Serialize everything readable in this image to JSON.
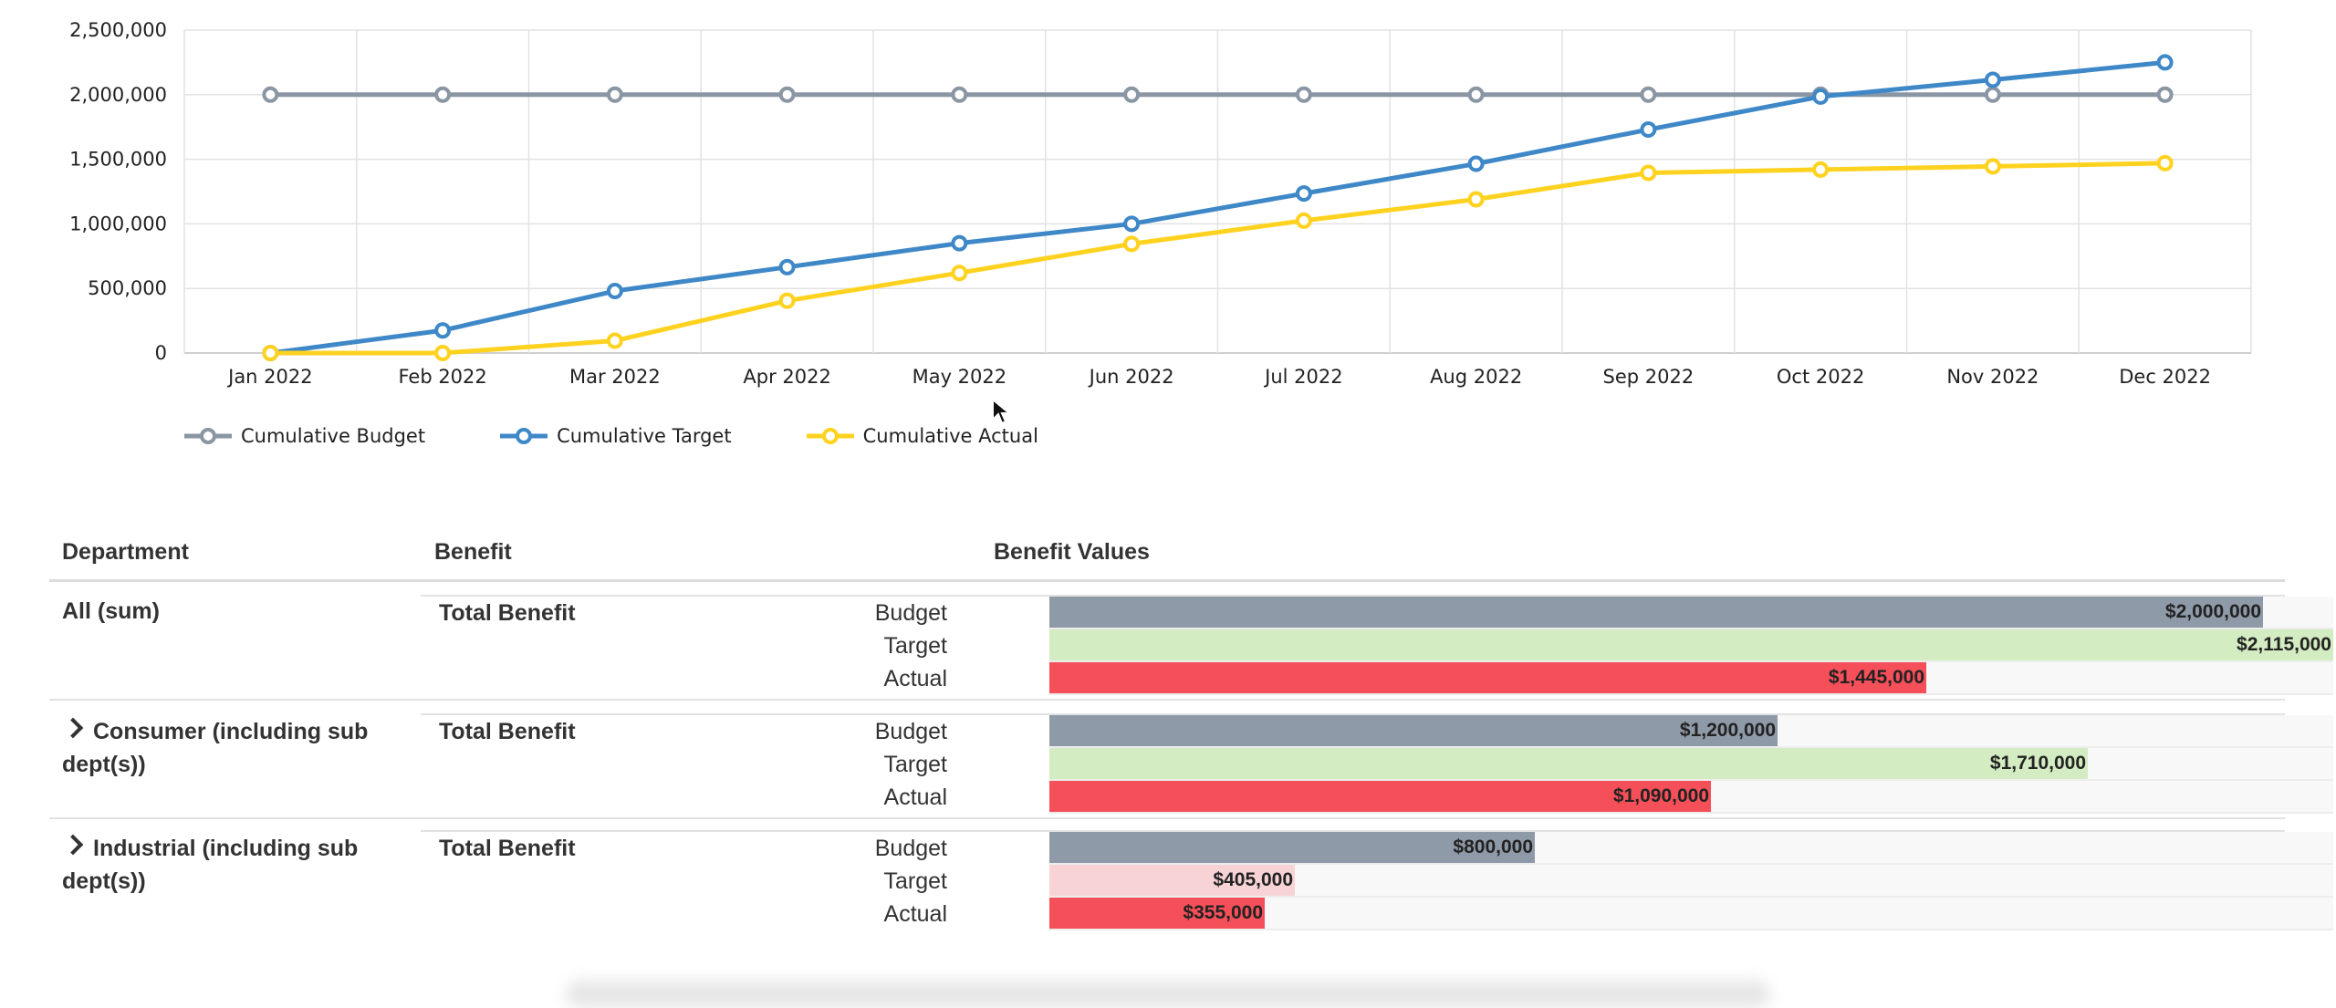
{
  "chart_data": {
    "type": "line",
    "categories": [
      "Jan 2022",
      "Feb 2022",
      "Mar 2022",
      "Apr 2022",
      "May 2022",
      "Jun 2022",
      "Jul 2022",
      "Aug 2022",
      "Sep 2022",
      "Oct 2022",
      "Nov 2022",
      "Dec 2022"
    ],
    "y_ticks": [
      "2,500,000",
      "2,000,000",
      "1,500,000",
      "1,000,000",
      "500,000",
      "0"
    ],
    "ylim": [
      0,
      2500000
    ],
    "grid": true,
    "legend_position": "bottom-left",
    "series": [
      {
        "name": "Cumulative Budget",
        "color": "#8a96a3",
        "values": [
          2000000,
          2000000,
          2000000,
          2000000,
          2000000,
          2000000,
          2000000,
          2000000,
          2000000,
          2000000,
          2000000,
          2000000
        ]
      },
      {
        "name": "Cumulative Target",
        "color": "#3f88c8",
        "values": [
          0,
          175000,
          480000,
          665000,
          850000,
          1000000,
          1235000,
          1465000,
          1730000,
          1985000,
          2115000,
          2250000
        ]
      },
      {
        "name": "Cumulative Actual",
        "color": "#ffd21f",
        "values": [
          0,
          0,
          95000,
          405000,
          620000,
          845000,
          1025000,
          1190000,
          1395000,
          1420000,
          1445000,
          1470000
        ]
      }
    ]
  },
  "table": {
    "headers": {
      "department": "Department",
      "benefit": "Benefit",
      "values": "Benefit Values"
    },
    "max_value": 2115000,
    "rows": [
      {
        "department": "All (sum)",
        "expandable": false,
        "benefit": "Total Benefit",
        "bars": [
          {
            "label": "Budget",
            "value": 2000000,
            "text": "$2,000,000",
            "color": "#8f9aa8"
          },
          {
            "label": "Target",
            "value": 2115000,
            "text": "$2,115,000",
            "color": "#d3ecc1"
          },
          {
            "label": "Actual",
            "value": 1445000,
            "text": "$1,445,000",
            "color": "#f5505a"
          }
        ]
      },
      {
        "department": "Consumer (including sub dept(s))",
        "expandable": true,
        "benefit": "Total Benefit",
        "bars": [
          {
            "label": "Budget",
            "value": 1200000,
            "text": "$1,200,000",
            "color": "#8f9aa8"
          },
          {
            "label": "Target",
            "value": 1710000,
            "text": "$1,710,000",
            "color": "#d3ecc1"
          },
          {
            "label": "Actual",
            "value": 1090000,
            "text": "$1,090,000",
            "color": "#f5505a"
          }
        ]
      },
      {
        "department": "Industrial (including sub dept(s))",
        "expandable": true,
        "benefit": "Total Benefit",
        "bars": [
          {
            "label": "Budget",
            "value": 800000,
            "text": "$800,000",
            "color": "#8f9aa8"
          },
          {
            "label": "Target",
            "value": 405000,
            "text": "$405,000",
            "color": "#f7d3d6"
          },
          {
            "label": "Actual",
            "value": 355000,
            "text": "$355,000",
            "color": "#f5505a"
          }
        ]
      }
    ]
  }
}
